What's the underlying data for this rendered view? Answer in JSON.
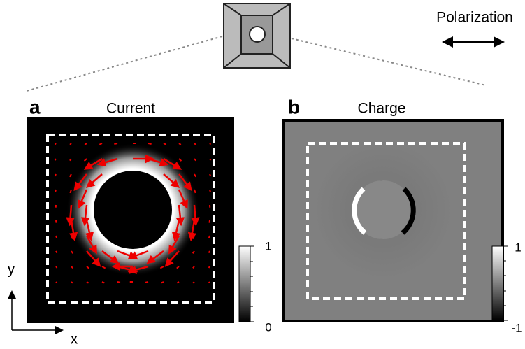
{
  "header": {
    "polarization": "Polarization"
  },
  "panels": [
    {
      "letter": "a",
      "title": "Current",
      "colorbar": {
        "max": 1,
        "min": 0
      }
    },
    {
      "letter": "b",
      "title": "Charge",
      "colorbar": {
        "max": 1,
        "min": -1
      }
    }
  ],
  "axes": {
    "y": "y",
    "x": "x"
  }
}
